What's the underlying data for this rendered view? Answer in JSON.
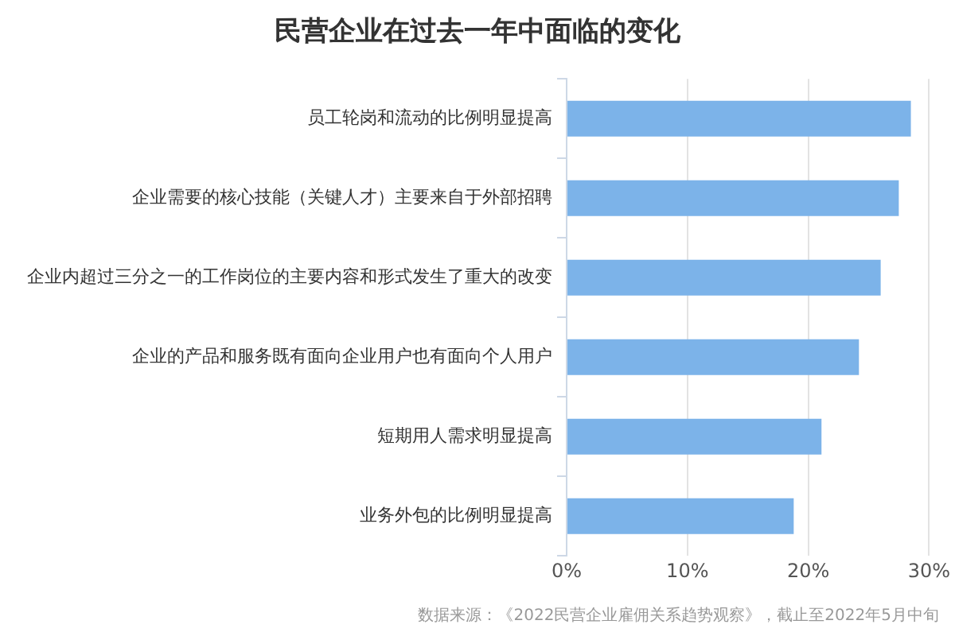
{
  "chart_data": {
    "type": "bar",
    "orientation": "horizontal",
    "title": "民营企业在过去一年中面临的变化",
    "categories": [
      "员工轮岗和流动的比例明显提高",
      "企业需要的核心技能（关键人才）主要来自于外部招聘",
      "企业内超过三分之一的工作岗位的主要内容和形式发生了重大的改变",
      "企业的产品和服务既有面向企业用户也有面向个人用户",
      "短期用人需求明显提高",
      "业务外包的比例明显提高"
    ],
    "values": [
      28.5,
      27.5,
      26.0,
      24.2,
      21.1,
      18.8
    ],
    "color": "#7cb3e9",
    "xlim": [
      0,
      30
    ],
    "xticks": [
      {
        "value": 0,
        "label": "0%"
      },
      {
        "value": 10,
        "label": "10%"
      },
      {
        "value": 20,
        "label": "20%"
      },
      {
        "value": 30,
        "label": "30%"
      }
    ],
    "grid": "x",
    "annotations": [
      "数据来源：《2022民营企业雇佣关系趋势观察》，截止至2022年5月中旬"
    ]
  }
}
